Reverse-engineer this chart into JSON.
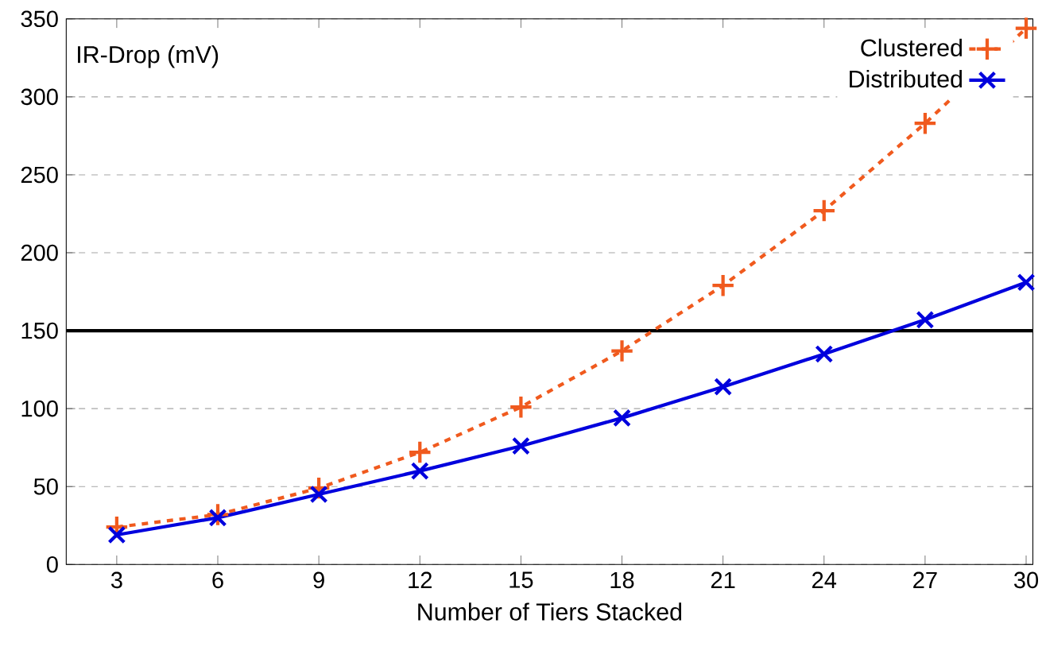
{
  "chart_data": {
    "type": "line",
    "xlabel": "Number of Tiers Stacked",
    "ylabel": "IR-Drop (mV)",
    "x": [
      3,
      6,
      9,
      12,
      15,
      18,
      21,
      24,
      27,
      30
    ],
    "series": [
      {
        "name": "Clustered",
        "color": "#f05a1e",
        "marker": "plus",
        "line_style": "dashed",
        "values": [
          24,
          32,
          49,
          72,
          101,
          137,
          179,
          227,
          283,
          344
        ]
      },
      {
        "name": "Distributed",
        "color": "#0000dd",
        "marker": "cross",
        "line_style": "solid",
        "values": [
          19,
          30,
          45,
          60,
          76,
          94,
          114,
          135,
          157,
          181
        ]
      }
    ],
    "xlim": [
      1.5,
      30.2
    ],
    "ylim": [
      0,
      350
    ],
    "xticks": [
      3,
      6,
      9,
      12,
      15,
      18,
      21,
      24,
      27,
      30
    ],
    "yticks": [
      0,
      50,
      100,
      150,
      200,
      250,
      300,
      350
    ],
    "ref_lines": [
      {
        "axis": "y",
        "value": 150,
        "color": "#000000"
      }
    ],
    "grid": "y",
    "legend": "top right"
  }
}
